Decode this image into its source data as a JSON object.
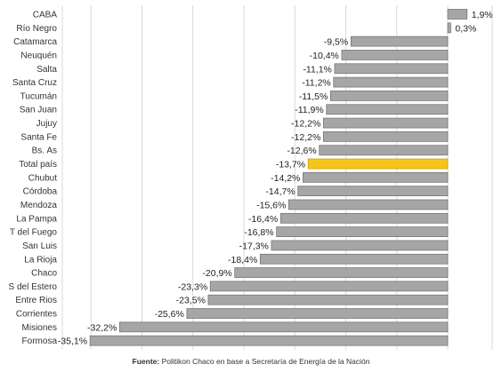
{
  "chart_data": {
    "type": "bar",
    "orientation": "horizontal",
    "categories": [
      "CABA",
      "Río Negro",
      "Catamarca",
      "Neuquén",
      "Salta",
      "Santa Cruz",
      "Tucumán",
      "San Juan",
      "Jujuy",
      "Santa Fe",
      "Bs. As",
      "Total país",
      "Chubut",
      "Córdoba",
      "Mendoza",
      "La Pampa",
      "T del Fuego",
      "San Luis",
      "La Rioja",
      "Chaco",
      "S del Estero",
      "Entre Rios",
      "Corrientes",
      "Misiones",
      "Formosa"
    ],
    "values": [
      1.9,
      0.3,
      -9.5,
      -10.4,
      -11.1,
      -11.2,
      -11.5,
      -11.9,
      -12.2,
      -12.2,
      -12.6,
      -13.7,
      -14.2,
      -14.7,
      -15.6,
      -16.4,
      -16.8,
      -17.3,
      -18.4,
      -20.9,
      -23.3,
      -23.5,
      -25.6,
      -32.2,
      -35.1
    ],
    "value_labels": [
      "1,9%",
      "0,3%",
      "-9,5%",
      "-10,4%",
      "-11,1%",
      "-11,2%",
      "-11,5%",
      "-11,9%",
      "-12,2%",
      "-12,2%",
      "-12,6%",
      "-13,7%",
      "-14,2%",
      "-14,7%",
      "-15,6%",
      "-16,4%",
      "-16,8%",
      "-17,3%",
      "-18,4%",
      "-20,9%",
      "-23,3%",
      "-23,5%",
      "-25,6%",
      "-32,2%",
      "-35,1%"
    ],
    "highlight_category": "Total país",
    "xlim": [
      -40,
      5
    ],
    "grid": true,
    "colors": {
      "bar": "#a6a6a6",
      "bar_border": "#6e6e6e",
      "highlight": "#f5c51b",
      "grid": "#d9d9d9"
    }
  },
  "footer": {
    "source_label": "Fuente:",
    "source_text": " Politikon Chaco en base a Secretaría de Energía de la Nación"
  }
}
